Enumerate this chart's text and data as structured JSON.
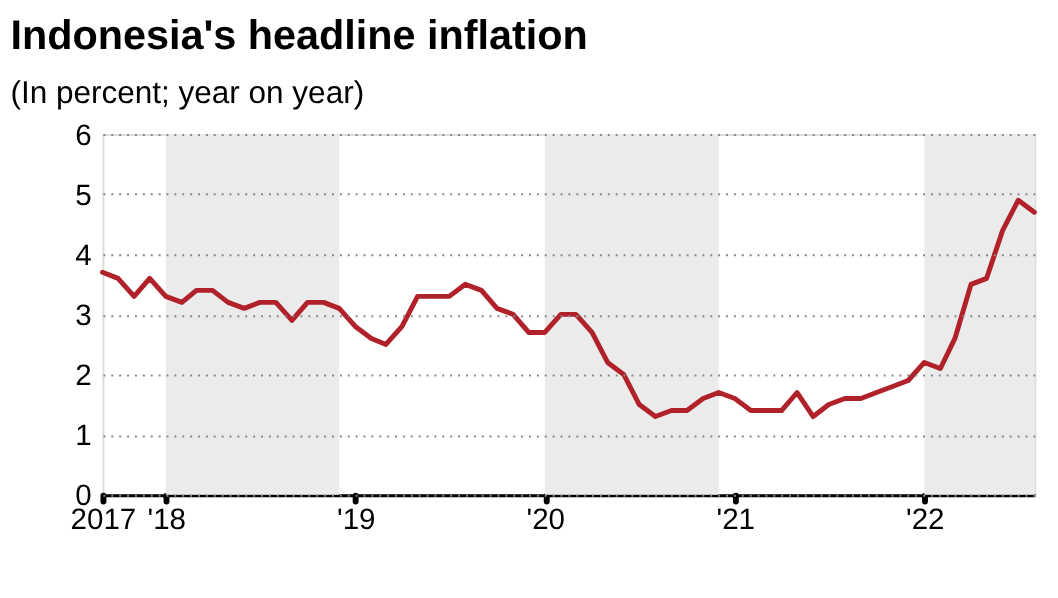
{
  "chart_data": {
    "type": "line",
    "title": "Indonesia's headline inflation",
    "subtitle": "(In percent; year on year)",
    "x": [
      "2017-09",
      "2017-10",
      "2017-11",
      "2017-12",
      "2018-01",
      "2018-02",
      "2018-03",
      "2018-04",
      "2018-05",
      "2018-06",
      "2018-07",
      "2018-08",
      "2018-09",
      "2018-10",
      "2018-11",
      "2018-12",
      "2019-01",
      "2019-02",
      "2019-03",
      "2019-04",
      "2019-05",
      "2019-06",
      "2019-07",
      "2019-08",
      "2019-09",
      "2019-10",
      "2019-11",
      "2019-12",
      "2020-01",
      "2020-02",
      "2020-03",
      "2020-04",
      "2020-05",
      "2020-06",
      "2020-07",
      "2020-08",
      "2020-09",
      "2020-10",
      "2020-11",
      "2020-12",
      "2021-01",
      "2021-02",
      "2021-03",
      "2021-04",
      "2021-05",
      "2021-06",
      "2021-07",
      "2021-08",
      "2021-09",
      "2021-10",
      "2021-11",
      "2021-12",
      "2022-01",
      "2022-02",
      "2022-03",
      "2022-04",
      "2022-05",
      "2022-06",
      "2022-07",
      "2022-08"
    ],
    "series": [
      {
        "color": "#b0212a",
        "values": [
          3.7,
          3.6,
          3.3,
          3.6,
          3.3,
          3.2,
          3.4,
          3.4,
          3.2,
          3.1,
          3.2,
          3.2,
          2.9,
          3.2,
          3.2,
          3.1,
          2.8,
          2.6,
          2.5,
          2.8,
          3.3,
          3.3,
          3.3,
          3.5,
          3.4,
          3.1,
          3.0,
          2.7,
          2.7,
          3.0,
          3.0,
          2.7,
          2.2,
          2.0,
          1.5,
          1.3,
          1.4,
          1.4,
          1.6,
          1.7,
          1.6,
          1.4,
          1.4,
          1.4,
          1.7,
          1.3,
          1.5,
          1.6,
          1.6,
          1.7,
          1.8,
          1.9,
          2.2,
          2.1,
          2.6,
          3.5,
          3.6,
          4.4,
          4.9,
          4.7
        ]
      }
    ],
    "xlim": [
      "2017-09",
      "2022-08"
    ],
    "xticks": [
      {
        "value": "2017-09",
        "label": "2017"
      },
      {
        "value": "2018-01",
        "label": "'18"
      },
      {
        "value": "2019-01",
        "label": "'19"
      },
      {
        "value": "2020-01",
        "label": "'20"
      },
      {
        "value": "2021-01",
        "label": "'21"
      },
      {
        "value": "2022-01",
        "label": "'22"
      }
    ],
    "ylim": [
      0,
      6
    ],
    "yticks": [
      0,
      1,
      2,
      3,
      4,
      5,
      6
    ],
    "grid": "y",
    "line_style": "solid",
    "bands": [
      {
        "axis": "x",
        "from": "2018-01",
        "to": "2018-12",
        "color": "#ebebeb"
      },
      {
        "axis": "x",
        "from": "2020-01",
        "to": "2020-12",
        "color": "#ebebeb"
      },
      {
        "axis": "x",
        "from": "2022-01",
        "to": "2022-08",
        "color": "#ebebeb"
      }
    ]
  }
}
